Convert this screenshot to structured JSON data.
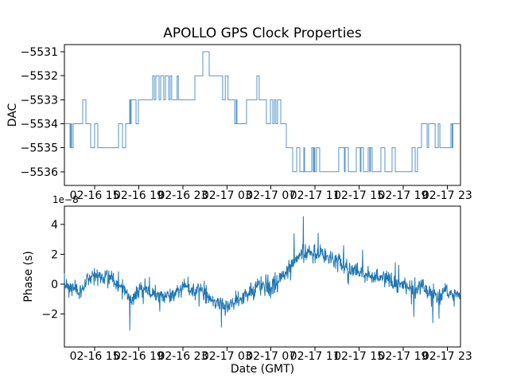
{
  "texts": {
    "title": "APOLLO GPS Clock Properties",
    "dac_ylabel": "DAC",
    "phase_ylabel": "Phase (s)",
    "date_xlabel": "Date (GMT)",
    "offset_label": "1e−8"
  },
  "colors": {
    "background": "#ffffff",
    "step_line": "#3b82bd",
    "phase_line": "#1f77b4",
    "spine": "#000000",
    "text": "#000000"
  },
  "chart_data": [
    {
      "type": "line",
      "subtype": "steps-post",
      "title": "APOLLO GPS Clock Properties",
      "xlabel": "",
      "ylabel": "DAC",
      "x_unit": "hours since 02-16 12:00 GMT",
      "xlim": [
        0.25,
        36.2
      ],
      "ylim": [
        -5536.57,
        -5530.7
      ],
      "grid": false,
      "legend": null,
      "xticks": {
        "values": [
          3,
          7,
          11,
          15,
          19,
          23,
          27,
          31,
          35
        ],
        "labels": [
          "02-16 15",
          "02-16 19",
          "02-16 23",
          "02-17 03",
          "02-17 07",
          "02-17 11",
          "02-17 15",
          "02-17 19",
          "02-17 23"
        ]
      },
      "yticks": {
        "values": [
          -5531,
          -5532,
          -5533,
          -5534,
          -5535,
          -5536
        ],
        "labels": [
          "−5531",
          "−5532",
          "−5533",
          "−5534",
          "−5535",
          "−5536"
        ]
      },
      "steps": [
        [
          0.25,
          -5534
        ],
        [
          0.76,
          -5535
        ],
        [
          0.83,
          -5534
        ],
        [
          0.9,
          -5535
        ],
        [
          1.04,
          -5534
        ],
        [
          1.91,
          -5533
        ],
        [
          2.2,
          -5534
        ],
        [
          2.63,
          -5535
        ],
        [
          2.99,
          -5534
        ],
        [
          3.28,
          -5535
        ],
        [
          5.16,
          -5534
        ],
        [
          5.52,
          -5535
        ],
        [
          5.81,
          -5534
        ],
        [
          6.17,
          -5533
        ],
        [
          6.24,
          -5534
        ],
        [
          6.31,
          -5533
        ],
        [
          6.75,
          -5534
        ],
        [
          6.96,
          -5533
        ],
        [
          8.26,
          -5532
        ],
        [
          8.41,
          -5533
        ],
        [
          8.55,
          -5532
        ],
        [
          8.84,
          -5533
        ],
        [
          8.99,
          -5532
        ],
        [
          9.27,
          -5533
        ],
        [
          9.42,
          -5532
        ],
        [
          9.71,
          -5533
        ],
        [
          9.85,
          -5532
        ],
        [
          9.99,
          -5533
        ],
        [
          10.48,
          -5532
        ],
        [
          10.59,
          -5533
        ],
        [
          12.09,
          -5532
        ],
        [
          12.81,
          -5531
        ],
        [
          13.39,
          -5532
        ],
        [
          14.61,
          -5533
        ],
        [
          14.85,
          -5532
        ],
        [
          15.1,
          -5533
        ],
        [
          15.7,
          -5534
        ],
        [
          15.84,
          -5533
        ],
        [
          15.91,
          -5534
        ],
        [
          16.78,
          -5533
        ],
        [
          17.72,
          -5532
        ],
        [
          17.93,
          -5533
        ],
        [
          18.58,
          -5534
        ],
        [
          18.95,
          -5533
        ],
        [
          19.16,
          -5534
        ],
        [
          19.31,
          -5533
        ],
        [
          19.45,
          -5534
        ],
        [
          19.6,
          -5533
        ],
        [
          19.89,
          -5534
        ],
        [
          20.39,
          -5535
        ],
        [
          20.97,
          -5536
        ],
        [
          21.33,
          -5535
        ],
        [
          21.62,
          -5536
        ],
        [
          21.98,
          -5535
        ],
        [
          22.05,
          -5536
        ],
        [
          22.7,
          -5535
        ],
        [
          22.84,
          -5536
        ],
        [
          22.91,
          -5535
        ],
        [
          22.98,
          -5536
        ],
        [
          23.13,
          -5535
        ],
        [
          23.42,
          -5536
        ],
        [
          25.15,
          -5535
        ],
        [
          25.66,
          -5536
        ],
        [
          25.73,
          -5535
        ],
        [
          26.02,
          -5536
        ],
        [
          26.74,
          -5535
        ],
        [
          27.1,
          -5536
        ],
        [
          27.17,
          -5535
        ],
        [
          27.39,
          -5536
        ],
        [
          27.82,
          -5535
        ],
        [
          27.96,
          -5536
        ],
        [
          28.03,
          -5535
        ],
        [
          28.18,
          -5536
        ],
        [
          28.98,
          -5535
        ],
        [
          29.34,
          -5536
        ],
        [
          29.99,
          -5535
        ],
        [
          30.28,
          -5536
        ],
        [
          31.8,
          -5535
        ],
        [
          32.09,
          -5536
        ],
        [
          32.3,
          -5535
        ],
        [
          32.66,
          -5534
        ],
        [
          33.17,
          -5535
        ],
        [
          33.31,
          -5534
        ],
        [
          33.9,
          -5535
        ],
        [
          34.18,
          -5534
        ],
        [
          34.33,
          -5535
        ],
        [
          35.33,
          -5534
        ],
        [
          35.44,
          -5535
        ],
        [
          35.51,
          -5534
        ]
      ]
    },
    {
      "type": "line",
      "subtype": "noisy-timeseries",
      "xlabel": "Date (GMT)",
      "ylabel": "Phase (s)",
      "y_scale_offset_label": "1e−8",
      "y_unit": "1e-8 s",
      "x_unit": "hours since 02-16 12:00 GMT",
      "xlim": [
        0.25,
        36.2
      ],
      "ylim": [
        -4.21,
        5.23
      ],
      "grid": false,
      "legend": null,
      "xticks": {
        "values": [
          3,
          7,
          11,
          15,
          19,
          23,
          27,
          31,
          35
        ],
        "labels": [
          "02-16 15",
          "02-16 19",
          "02-16 23",
          "02-17 03",
          "02-17 07",
          "02-17 11",
          "02-17 15",
          "02-17 19",
          "02-17 23"
        ]
      },
      "yticks": {
        "values": [
          -2,
          0,
          2,
          4
        ],
        "labels": [
          "−2",
          "0",
          "2",
          "4"
        ]
      },
      "trend": [
        [
          0.25,
          -0.05
        ],
        [
          1,
          -0.25
        ],
        [
          1.6,
          -0.7
        ],
        [
          2.3,
          0.3
        ],
        [
          2.8,
          0.55
        ],
        [
          3.5,
          0.5
        ],
        [
          4.2,
          0.6
        ],
        [
          4.8,
          0.3
        ],
        [
          5.5,
          -0.3
        ],
        [
          6.2,
          -0.9
        ],
        [
          6.9,
          -0.55
        ],
        [
          7.7,
          -0.5
        ],
        [
          8.5,
          -0.75
        ],
        [
          9.2,
          -0.85
        ],
        [
          9.9,
          -0.7
        ],
        [
          10.6,
          -0.35
        ],
        [
          11.3,
          -0.15
        ],
        [
          12,
          -0.5
        ],
        [
          12.7,
          -0.3
        ],
        [
          13.4,
          -1.0
        ],
        [
          14.1,
          -1.3
        ],
        [
          14.8,
          -1.4
        ],
        [
          15.5,
          -1.2
        ],
        [
          16.2,
          -0.9
        ],
        [
          16.9,
          -0.6
        ],
        [
          17.6,
          -0.3
        ],
        [
          18.3,
          0.0
        ],
        [
          19,
          -0.3
        ],
        [
          19.7,
          0.2
        ],
        [
          20.4,
          0.9
        ],
        [
          21.1,
          1.7
        ],
        [
          21.8,
          2.0
        ],
        [
          22.4,
          2.1
        ],
        [
          22.9,
          1.9
        ],
        [
          23.6,
          2.0
        ],
        [
          24.3,
          1.7
        ],
        [
          25,
          1.5
        ],
        [
          25.7,
          1.3
        ],
        [
          26.4,
          1.0
        ],
        [
          27.1,
          0.8
        ],
        [
          27.8,
          0.6
        ],
        [
          28.5,
          0.4
        ],
        [
          29.2,
          0.6
        ],
        [
          29.9,
          0.2
        ],
        [
          30.6,
          0.0
        ],
        [
          31.3,
          -0.2
        ],
        [
          32,
          -0.4
        ],
        [
          32.7,
          -0.2
        ],
        [
          33.4,
          -0.6
        ],
        [
          34.1,
          -0.9
        ],
        [
          34.8,
          -0.5
        ],
        [
          35.5,
          -0.8
        ],
        [
          36.2,
          -0.7
        ]
      ],
      "spikes": [
        [
          6.2,
          -3.1
        ],
        [
          14.5,
          -2.9
        ],
        [
          21.1,
          3.4
        ],
        [
          21.95,
          4.55
        ],
        [
          25.6,
          2.6
        ],
        [
          27.3,
          2.3
        ],
        [
          33.7,
          -2.6
        ]
      ],
      "noise_sd": 0.28,
      "points_per_hour": 32,
      "seed": 7
    }
  ]
}
